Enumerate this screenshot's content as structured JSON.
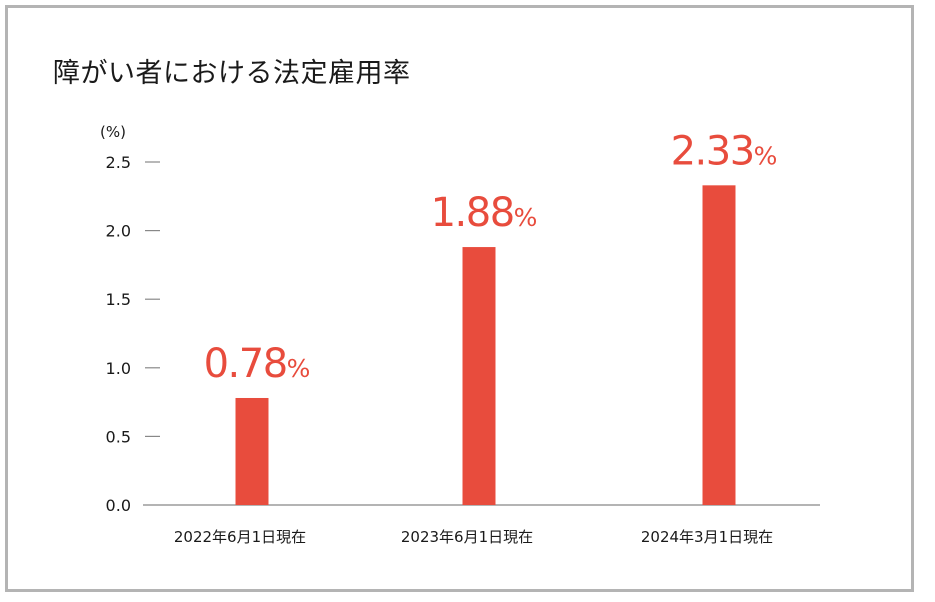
{
  "chart_data": {
    "type": "bar",
    "title": "障がい者における法定雇用率",
    "y_unit": "(%)",
    "categories": [
      "2022年6月1日現在",
      "2023年6月1日現在",
      "2024年3月1日現在"
    ],
    "values": [
      0.78,
      1.88,
      2.33
    ],
    "value_labels": [
      "0.78",
      "1.88",
      "2.33"
    ],
    "value_suffix": "%",
    "yticks": [
      "0.0",
      "0.5",
      "1.0",
      "1.5",
      "2.0",
      "2.5"
    ],
    "ylim": [
      0,
      2.5
    ],
    "grid": false,
    "colors": {
      "bar": "#e84c3d",
      "label": "#e84c3d",
      "axis": "#888888",
      "frame": "#b4b4b4"
    }
  }
}
